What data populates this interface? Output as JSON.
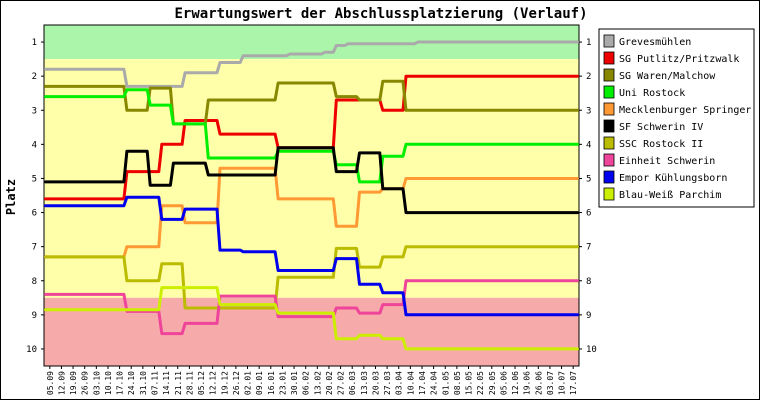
{
  "chart_data": {
    "type": "line",
    "title": "Erwartungswert der Abschlussplatzierung (Verlauf)",
    "ylabel": "Platz",
    "xlabel": "",
    "ylim": [
      1,
      10
    ],
    "y_inverted": true,
    "y_ticks": [
      "1",
      "2",
      "3",
      "4",
      "5",
      "6",
      "7",
      "8",
      "9",
      "10"
    ],
    "legend_position": "right",
    "zones": [
      {
        "name": "promotion",
        "from": 0.5,
        "to": 1.5,
        "color": "#aaf5aa"
      },
      {
        "name": "middle",
        "from": 1.5,
        "to": 8.5,
        "color": "#ffffaa"
      },
      {
        "name": "relegation",
        "from": 8.5,
        "to": 10.5,
        "color": "#f7aaaa"
      }
    ],
    "x": [
      "05.09",
      "12.09",
      "19.09",
      "26.09",
      "03.10",
      "10.10",
      "17.10",
      "24.10",
      "31.10",
      "07.11",
      "14.11",
      "21.11",
      "28.11",
      "05.12",
      "12.12",
      "19.12",
      "26.12",
      "02.01",
      "09.01",
      "16.01",
      "23.01",
      "30.01",
      "06.02",
      "13.02",
      "20.02",
      "27.02",
      "06.03",
      "13.03",
      "20.03",
      "27.03",
      "03.04",
      "10.04",
      "17.04",
      "24.04",
      "01.05",
      "08.05",
      "15.05",
      "22.05",
      "29.05",
      "05.06",
      "12.06",
      "19.06",
      "26.06",
      "03.07",
      "10.07",
      "17.07"
    ],
    "series": [
      {
        "name": "Grevesmühlen",
        "color": "#aaaaaa",
        "values": [
          1.8,
          1.8,
          1.8,
          1.8,
          1.8,
          1.8,
          1.8,
          2.3,
          2.3,
          2.3,
          2.3,
          2.3,
          1.9,
          1.9,
          1.9,
          1.6,
          1.6,
          1.4,
          1.4,
          1.4,
          1.4,
          1.35,
          1.35,
          1.35,
          1.3,
          1.1,
          1.05,
          1.05,
          1.05,
          1.05,
          1.05,
          1.05,
          1,
          1,
          1,
          1,
          1,
          1,
          1,
          1,
          1,
          1,
          1,
          1,
          1,
          1
        ]
      },
      {
        "name": "SG Putlitz/Pritzwalk",
        "color": "#ee0000",
        "values": [
          5.6,
          5.6,
          5.6,
          5.6,
          5.6,
          5.6,
          5.6,
          4.8,
          4.8,
          4.8,
          4.0,
          4.0,
          3.3,
          3.3,
          3.3,
          3.7,
          3.7,
          3.7,
          3.7,
          3.7,
          4.1,
          4.1,
          4.1,
          4.1,
          4.1,
          2.7,
          2.7,
          2.7,
          2.7,
          3.0,
          3.0,
          2.0,
          2,
          2,
          2,
          2,
          2,
          2,
          2,
          2,
          2,
          2,
          2,
          2,
          2,
          2
        ]
      },
      {
        "name": "SG Waren/Malchow",
        "color": "#888800",
        "values": [
          2.3,
          2.3,
          2.3,
          2.3,
          2.3,
          2.3,
          2.3,
          3.0,
          3.0,
          2.35,
          2.35,
          3.4,
          3.4,
          3.4,
          2.7,
          2.7,
          2.7,
          2.7,
          2.7,
          2.7,
          2.2,
          2.2,
          2.2,
          2.2,
          2.2,
          2.6,
          2.6,
          2.7,
          2.7,
          2.15,
          2.15,
          3.0,
          3,
          3,
          3,
          3,
          3,
          3,
          3,
          3,
          3,
          3,
          3,
          3,
          3,
          3
        ]
      },
      {
        "name": "Uni Rostock",
        "color": "#00ee00",
        "values": [
          2.6,
          2.6,
          2.6,
          2.6,
          2.6,
          2.6,
          2.6,
          2.4,
          2.4,
          2.85,
          2.85,
          3.4,
          3.4,
          3.4,
          4.4,
          4.4,
          4.4,
          4.4,
          4.4,
          4.4,
          4.2,
          4.2,
          4.2,
          4.2,
          4.2,
          4.6,
          4.6,
          5.1,
          5.1,
          4.35,
          4.35,
          4.0,
          4,
          4,
          4,
          4,
          4,
          4,
          4,
          4,
          4,
          4,
          4,
          4,
          4,
          4
        ]
      },
      {
        "name": "Mecklenburger Springer",
        "color": "#ff9933",
        "values": [
          7.3,
          7.3,
          7.3,
          7.3,
          7.3,
          7.3,
          7.3,
          7.0,
          7.0,
          7.0,
          5.8,
          5.8,
          6.3,
          6.3,
          6.3,
          4.7,
          4.7,
          4.7,
          4.7,
          4.7,
          5.6,
          5.6,
          5.6,
          5.6,
          5.6,
          6.4,
          6.4,
          5.4,
          5.4,
          5.3,
          5.3,
          5.0,
          5,
          5,
          5,
          5,
          5,
          5,
          5,
          5,
          5,
          5,
          5,
          5,
          5,
          5
        ]
      },
      {
        "name": "SF Schwerin IV",
        "color": "#000000",
        "values": [
          5.1,
          5.1,
          5.1,
          5.1,
          5.1,
          5.1,
          5.1,
          4.2,
          4.2,
          5.2,
          5.2,
          4.55,
          4.55,
          4.55,
          4.9,
          4.9,
          4.9,
          4.9,
          4.9,
          4.9,
          4.1,
          4.1,
          4.1,
          4.1,
          4.1,
          4.8,
          4.8,
          4.25,
          4.25,
          5.3,
          5.3,
          6.0,
          6,
          6,
          6,
          6,
          6,
          6,
          6,
          6,
          6,
          6,
          6,
          6,
          6,
          6
        ]
      },
      {
        "name": "SSC Rostock II",
        "color": "#bbbb00",
        "values": [
          7.3,
          7.3,
          7.3,
          7.3,
          7.3,
          7.3,
          7.3,
          8.0,
          8.0,
          8.0,
          7.5,
          7.5,
          8.8,
          8.8,
          8.8,
          8.8,
          8.8,
          8.8,
          8.8,
          8.8,
          7.9,
          7.9,
          7.9,
          7.9,
          7.9,
          7.05,
          7.05,
          7.6,
          7.6,
          7.3,
          7.3,
          7.0,
          7,
          7,
          7,
          7,
          7,
          7,
          7,
          7,
          7,
          7,
          7,
          7,
          7,
          7
        ]
      },
      {
        "name": "Einheit Schwerin",
        "color": "#ee4499",
        "values": [
          8.4,
          8.4,
          8.4,
          8.4,
          8.4,
          8.4,
          8.4,
          8.9,
          8.9,
          8.9,
          9.55,
          9.55,
          9.25,
          9.25,
          9.25,
          8.45,
          8.45,
          8.45,
          8.45,
          8.45,
          9.05,
          9.05,
          9.05,
          9.05,
          9.05,
          8.8,
          8.8,
          8.95,
          8.95,
          8.7,
          8.7,
          8.0,
          8,
          8,
          8,
          8,
          8,
          8,
          8,
          8,
          8,
          8,
          8,
          8,
          8,
          8
        ]
      },
      {
        "name": "Empor Kühlungsborn",
        "color": "#0000ee",
        "values": [
          5.8,
          5.8,
          5.8,
          5.8,
          5.8,
          5.8,
          5.8,
          5.55,
          5.55,
          5.55,
          6.2,
          6.2,
          5.9,
          5.9,
          5.9,
          7.1,
          7.1,
          7.15,
          7.15,
          7.15,
          7.7,
          7.7,
          7.7,
          7.7,
          7.7,
          7.35,
          7.35,
          8.1,
          8.1,
          8.35,
          8.35,
          9.0,
          9,
          9,
          9,
          9,
          9,
          9,
          9,
          9,
          9,
          9,
          9,
          9,
          9,
          9
        ]
      },
      {
        "name": "Blau-Weiß Parchim",
        "color": "#ccee00",
        "values": [
          8.85,
          8.85,
          8.85,
          8.85,
          8.85,
          8.85,
          8.85,
          8.85,
          8.85,
          8.85,
          8.2,
          8.2,
          8.2,
          8.2,
          8.2,
          8.7,
          8.7,
          8.7,
          8.7,
          8.7,
          8.95,
          8.95,
          8.95,
          8.95,
          8.95,
          9.7,
          9.7,
          9.6,
          9.6,
          9.7,
          9.7,
          10.0,
          10,
          10,
          10,
          10,
          10,
          10,
          10,
          10,
          10,
          10,
          10,
          10,
          10,
          10
        ]
      }
    ]
  }
}
